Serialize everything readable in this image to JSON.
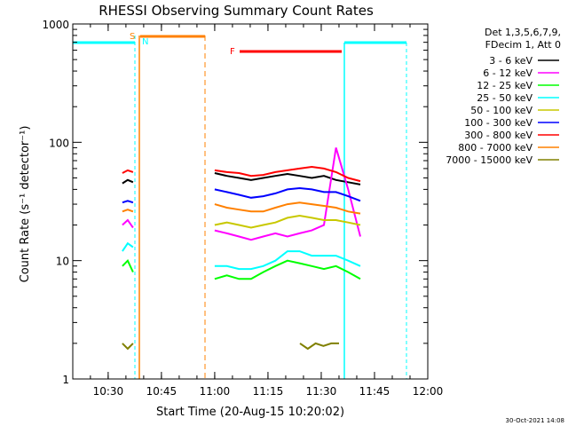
{
  "chart_data": {
    "type": "line",
    "title": "RHESSI Observing Summary Count Rates",
    "xlabel": "Start Time (20-Aug-15 10:20:02)",
    "ylabel": "Count Rate (s⁻¹ detector⁻¹)",
    "yscale": "log",
    "ylim": [
      1,
      1000
    ],
    "xlim": [
      "10:20:02",
      "12:00"
    ],
    "x_ticks": [
      "10:30",
      "10:45",
      "11:00",
      "11:15",
      "11:30",
      "11:45",
      "12:00"
    ],
    "y_ticks": [
      "1",
      "10",
      "100",
      "1000"
    ],
    "legend_header": [
      "Det 1,3,5,6,7,9,",
      "FDecim 1, Att 0"
    ],
    "legend_position": "right",
    "timestamp": "30-Oct-2021 14:08",
    "series": [
      {
        "name": "3 - 6 keV",
        "color": "#000000",
        "segments": [
          {
            "start": "10:34",
            "end": "10:37",
            "values": [
              45,
              48,
              46
            ]
          },
          {
            "start": "11:00",
            "end": "11:41",
            "values": [
              55,
              52,
              50,
              48,
              50,
              52,
              54,
              52,
              50,
              52,
              48,
              46,
              44
            ]
          }
        ]
      },
      {
        "name": "6 - 12 keV",
        "color": "#ff00ff",
        "segments": [
          {
            "start": "10:34",
            "end": "10:37",
            "values": [
              20,
              22,
              19
            ]
          },
          {
            "start": "11:00",
            "end": "11:41",
            "values": [
              18,
              17,
              16,
              15,
              16,
              17,
              16,
              17,
              18,
              20,
              90,
              40,
              16
            ]
          }
        ]
      },
      {
        "name": "12 - 25 keV",
        "color": "#00ff00",
        "segments": [
          {
            "start": "10:34",
            "end": "10:37",
            "values": [
              9,
              10,
              8
            ]
          },
          {
            "start": "11:00",
            "end": "11:41",
            "values": [
              7,
              7.5,
              7,
              7,
              8,
              9,
              10,
              9.5,
              9,
              8.5,
              9,
              8,
              7
            ]
          }
        ]
      },
      {
        "name": "25 - 50 keV",
        "color": "#00ffff",
        "segments": [
          {
            "start": "10:34",
            "end": "10:37",
            "values": [
              12,
              14,
              13
            ]
          },
          {
            "start": "11:00",
            "end": "11:41",
            "values": [
              9,
              9,
              8.5,
              8.5,
              9,
              10,
              12,
              12,
              11,
              11,
              11,
              10,
              9
            ]
          }
        ]
      },
      {
        "name": "50 - 100 keV",
        "color": "#c8c800",
        "segments": [
          {
            "start": "11:00",
            "end": "11:41",
            "values": [
              20,
              21,
              20,
              19,
              20,
              21,
              23,
              24,
              23,
              22,
              22,
              21,
              20
            ]
          }
        ]
      },
      {
        "name": "100 - 300 keV",
        "color": "#0000ff",
        "segments": [
          {
            "start": "10:34",
            "end": "10:37",
            "values": [
              31,
              32,
              31
            ]
          },
          {
            "start": "11:00",
            "end": "11:41",
            "values": [
              40,
              38,
              36,
              34,
              35,
              37,
              40,
              41,
              40,
              38,
              38,
              35,
              32
            ]
          }
        ]
      },
      {
        "name": "300 - 800 keV",
        "color": "#ff0000",
        "segments": [
          {
            "start": "10:34",
            "end": "10:37",
            "values": [
              55,
              58,
              56
            ]
          },
          {
            "start": "11:00",
            "end": "11:41",
            "values": [
              58,
              56,
              55,
              52,
              53,
              56,
              58,
              60,
              62,
              60,
              56,
              50,
              47
            ]
          }
        ]
      },
      {
        "name": "800 - 7000 keV",
        "color": "#ff8000",
        "segments": [
          {
            "start": "10:34",
            "end": "10:37",
            "values": [
              26,
              27,
              26
            ]
          },
          {
            "start": "11:00",
            "end": "11:41",
            "values": [
              30,
              28,
              27,
              26,
              26,
              28,
              30,
              31,
              30,
              29,
              28,
              26,
              25
            ]
          }
        ]
      },
      {
        "name": "7000 - 15000 keV",
        "color": "#808000",
        "segments": [
          {
            "start": "10:34",
            "end": "10:37",
            "values": [
              2,
              1.8,
              2
            ]
          },
          {
            "start": "11:24",
            "end": "11:35",
            "values": [
              2,
              1.8,
              2,
              1.9,
              2,
              2
            ]
          }
        ]
      }
    ],
    "annotations": [
      {
        "label": "S",
        "color": "#ff8000"
      },
      {
        "label": "N",
        "color": "#00ffff"
      },
      {
        "label": "F",
        "color": "#ff0000"
      }
    ]
  }
}
